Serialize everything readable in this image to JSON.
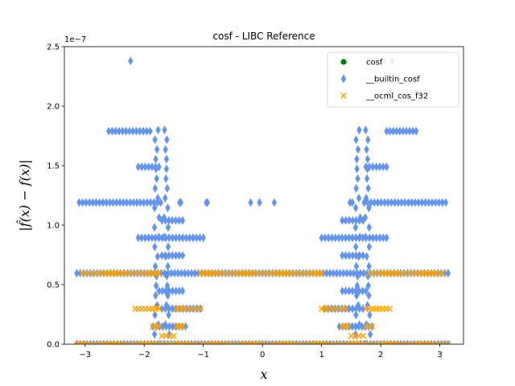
{
  "chart_data": {
    "type": "scatter",
    "title": "cosf - LIBC Reference",
    "xlabel": "x",
    "ylabel": "|f̂(x) − f(x)|",
    "y_offset_label": "1e−7",
    "xlim": [
      -3.35,
      3.4
    ],
    "ylim": [
      0,
      2.5e-07
    ],
    "x_ticks": [
      -3,
      -2,
      -1,
      0,
      1,
      2,
      3
    ],
    "x_tick_labels": [
      "−3",
      "−2",
      "−1",
      "0",
      "1",
      "2",
      "3"
    ],
    "y_ticks": [
      0,
      5e-08,
      1e-07,
      1.5e-07,
      2e-07,
      2.5e-07
    ],
    "y_tick_labels": [
      "0.0",
      "0.5",
      "1.0",
      "1.5",
      "2.0",
      "2.5"
    ],
    "grid": false,
    "legend_position": "top-right",
    "series": [
      {
        "name": "cosf",
        "marker": "circle",
        "color": "#008000",
        "x": [
          -3.0,
          0.0,
          3.0
        ],
        "y": [
          0,
          0,
          0
        ]
      },
      {
        "name": "__builtin_cosf",
        "marker": "diamond",
        "color": "#6495ed",
        "bands": [
          {
            "y": 0,
            "x_ranges": [
              [
                -3.14,
                3.14
              ]
            ]
          },
          {
            "y": 5.96e-08,
            "x_ranges": [
              [
                -3.14,
                3.14
              ]
            ]
          },
          {
            "y": 1.19e-07,
            "x_ranges": [
              [
                -3.1,
                -1.72
              ],
              [
                -1.4,
                -1.38
              ],
              [
                -0.95,
                -0.93
              ],
              [
                1.48,
                1.52
              ],
              [
                1.72,
                3.1
              ]
            ]
          },
          {
            "y": 1.79e-07,
            "x_ranges": [
              [
                -2.6,
                -1.9
              ],
              [
                2.1,
                2.6
              ]
            ]
          },
          {
            "y": 1.49e-07,
            "x_ranges": [
              [
                -2.1,
                -1.75
              ],
              [
                1.75,
                2.1
              ]
            ]
          },
          {
            "y": 8.94e-08,
            "x_ranges": [
              [
                -2.1,
                -1.0
              ],
              [
                1.0,
                2.1
              ]
            ]
          },
          {
            "y": 2.98e-08,
            "x_ranges": [
              [
                -1.7,
                -1.05
              ],
              [
                1.05,
                1.7
              ]
            ]
          },
          {
            "y": 1.49e-08,
            "x_ranges": [
              [
                -1.85,
                -1.3
              ],
              [
                1.3,
                1.85
              ]
            ]
          },
          {
            "y": 1.04e-07,
            "x_ranges": [
              [
                -1.7,
                -1.35
              ],
              [
                1.35,
                1.7
              ]
            ]
          },
          {
            "y": 4.47e-08,
            "x_ranges": [
              [
                -1.75,
                -1.35
              ],
              [
                1.35,
                1.75
              ]
            ]
          },
          {
            "y": 7.45e-08,
            "x_ranges": [
              [
                -1.7,
                -1.35
              ],
              [
                1.35,
                1.7
              ]
            ]
          }
        ],
        "points": [
          {
            "x": -2.23,
            "y": 2.38e-07
          },
          {
            "x": 2.2,
            "y": 2.38e-07
          },
          {
            "x": -0.2,
            "y": 1.19e-07
          },
          {
            "x": -0.05,
            "y": 1.19e-07
          },
          {
            "x": 0.2,
            "y": 1.19e-07
          }
        ],
        "arms": [
          {
            "x0": -1.95,
            "x1": -1.45
          },
          {
            "x0": 1.45,
            "x1": 1.95
          }
        ]
      },
      {
        "name": "__ocml_cos_f32",
        "marker": "x",
        "color": "#ffa500",
        "bands": [
          {
            "y": 0,
            "x_ranges": [
              [
                -3.14,
                3.14
              ]
            ]
          },
          {
            "y": 5.96e-08,
            "x_ranges": [
              [
                -3.05,
                -1.75
              ],
              [
                -1.05,
                1.0
              ],
              [
                1.8,
                3.05
              ]
            ]
          },
          {
            "y": 2.98e-08,
            "x_ranges": [
              [
                -2.15,
                -1.75
              ],
              [
                -1.45,
                -1.05
              ],
              [
                1.0,
                1.4
              ],
              [
                1.75,
                2.15
              ]
            ]
          },
          {
            "y": 1.49e-08,
            "x_ranges": [
              [
                -1.85,
                -1.75
              ],
              [
                -1.45,
                -1.35
              ],
              [
                1.35,
                1.45
              ],
              [
                1.75,
                1.85
              ]
            ]
          },
          {
            "y": 7e-09,
            "x_ranges": [
              [
                -1.7,
                -1.5
              ],
              [
                1.5,
                1.7
              ]
            ]
          }
        ]
      }
    ]
  }
}
